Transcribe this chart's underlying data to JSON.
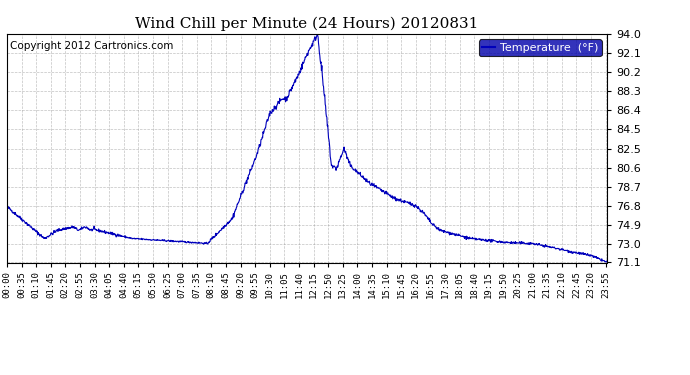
{
  "title": "Wind Chill per Minute (24 Hours) 20120831",
  "copyright": "Copyright 2012 Cartronics.com",
  "legend_label": "Temperature  (°F)",
  "line_color": "#0000BB",
  "background_color": "#ffffff",
  "plot_bg_color": "#ffffff",
  "grid_color": "#999999",
  "ylim": [
    71.1,
    94.0
  ],
  "yticks": [
    71.1,
    73.0,
    74.9,
    76.8,
    78.7,
    80.6,
    82.5,
    84.5,
    86.4,
    88.3,
    90.2,
    92.1,
    94.0
  ],
  "xlabel_fontsize": 6.5,
  "ylabel_fontsize": 8,
  "title_fontsize": 11,
  "copyright_fontsize": 7.5,
  "legend_fontsize": 8,
  "legend_bg": "#0000AA",
  "legend_text_color": "#ffffff"
}
